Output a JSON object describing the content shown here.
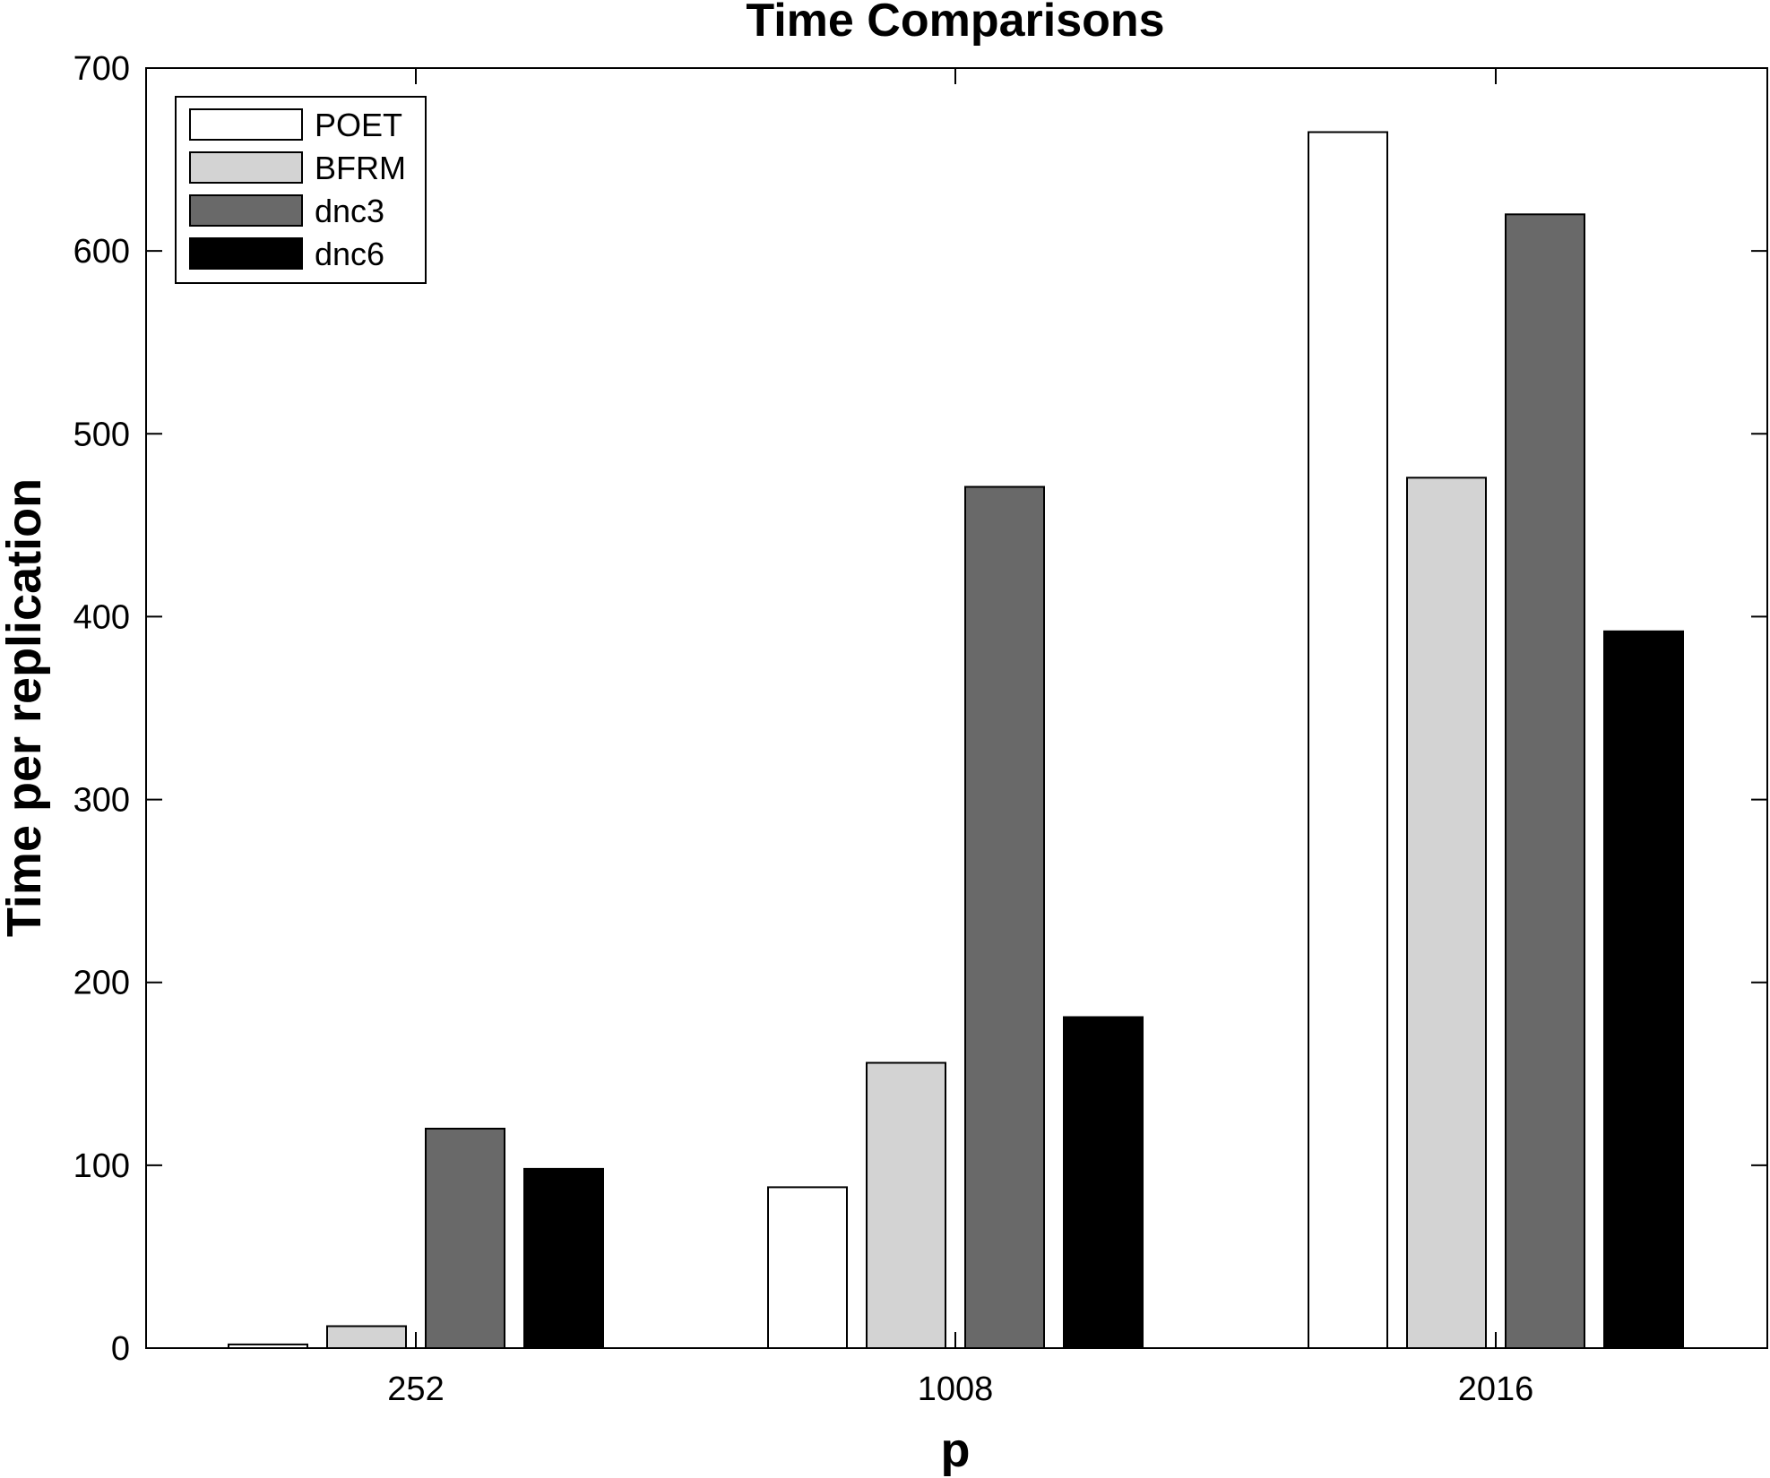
{
  "chart_data": {
    "type": "bar",
    "title": "Time Comparisons",
    "xlabel": "p",
    "ylabel": "Time per replication",
    "categories": [
      "252",
      "1008",
      "2016"
    ],
    "series": [
      {
        "name": "POET",
        "color": "#ffffff",
        "values": [
          2,
          88,
          665
        ]
      },
      {
        "name": "BFRM",
        "color": "#d3d3d3",
        "values": [
          12,
          156,
          476
        ]
      },
      {
        "name": "dnc3",
        "color": "#696969",
        "values": [
          120,
          471,
          620
        ]
      },
      {
        "name": "dnc6",
        "color": "#000000",
        "values": [
          98,
          181,
          392
        ]
      }
    ],
    "ylim": [
      0,
      700
    ],
    "yticks": [
      "0",
      "100",
      "200",
      "300",
      "400",
      "500",
      "600",
      "700"
    ],
    "grid": false,
    "legend_position": "top-left"
  }
}
